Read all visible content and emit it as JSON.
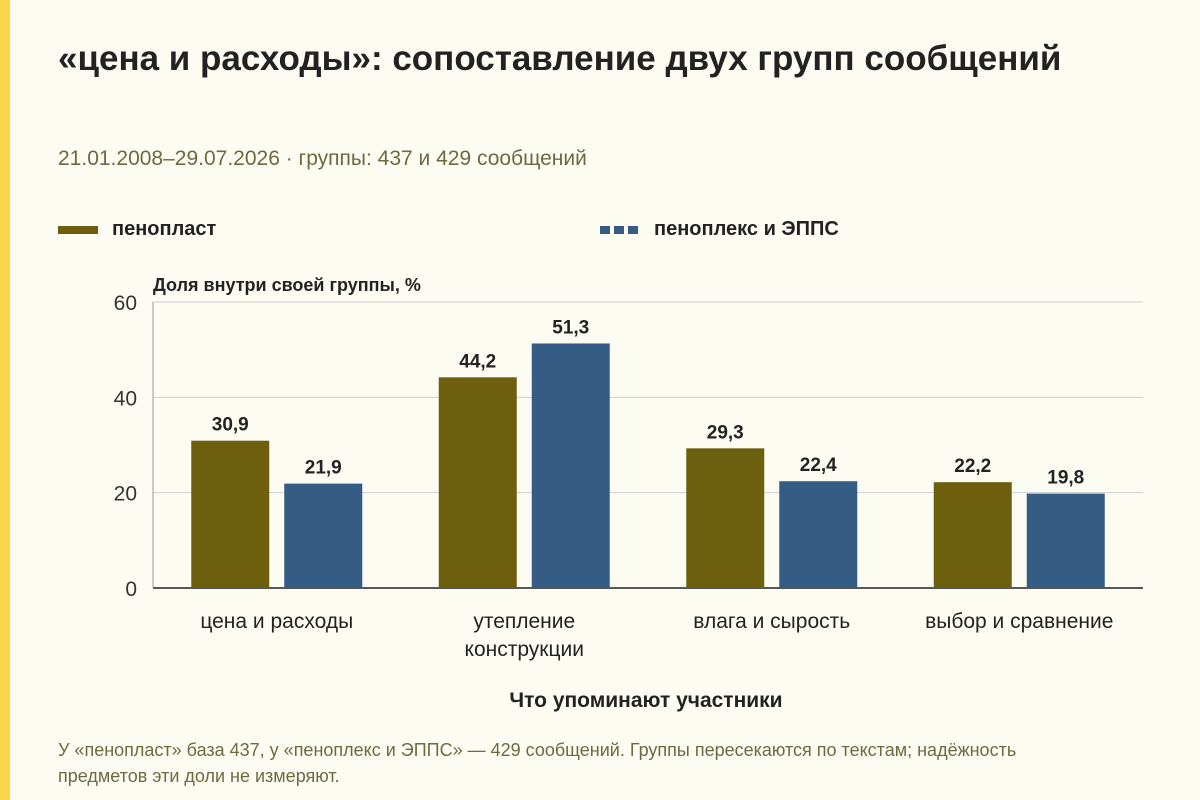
{
  "title": "«цена и расходы»: сопоставление двух групп сообщений",
  "subtitle": "21.01.2008–29.07.2026 · группы: 437 и 429 сообщений",
  "note": "У «пенопласт» база 437, у «пеноплекс и ЭППС» — 429 сообщений. Группы пересекаются по текстам; надёжность предметов эти доли не измеряют.",
  "colors": {
    "accent": "#f8d84a",
    "series1": "#6e5f0f",
    "series2": "#355c84"
  },
  "chart_data": {
    "type": "bar",
    "ylabel": "Доля внутри своей группы, %",
    "xlabel": "Что упоминают участники",
    "ylim": [
      0,
      60
    ],
    "yticks": [
      "0",
      "20",
      "40",
      "60"
    ],
    "categories": [
      [
        "цена и расходы"
      ],
      [
        "утепление",
        "конструкции"
      ],
      [
        "влага и сырость"
      ],
      [
        "выбор и сравнение"
      ]
    ],
    "series": [
      {
        "name": "пенопласт",
        "values": [
          30.9,
          44.2,
          29.3,
          22.2
        ],
        "labels": [
          "30,9",
          "44,2",
          "29,3",
          "22,2"
        ]
      },
      {
        "name": "пеноплекс и ЭППС",
        "values": [
          21.9,
          51.3,
          22.4,
          19.8
        ],
        "labels": [
          "21,9",
          "51,3",
          "22,4",
          "19,8"
        ]
      }
    ],
    "grid": true,
    "legend": "top"
  }
}
